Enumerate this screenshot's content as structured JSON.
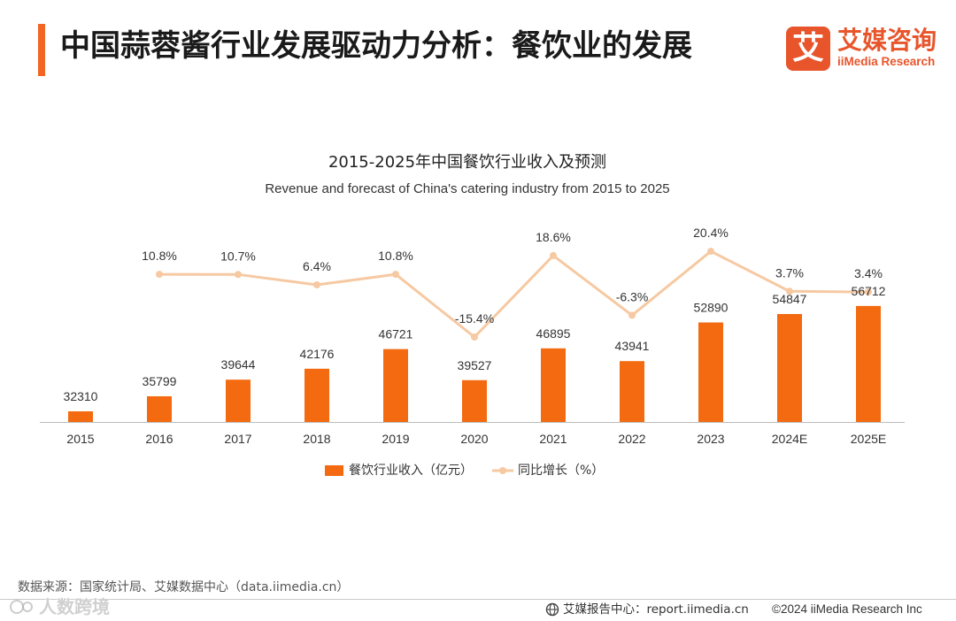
{
  "header": {
    "title": "中国蒜蓉酱行业发展驱动力分析：餐饮业的发展"
  },
  "logo": {
    "mark": "艾",
    "name_cn": "艾媒咨询",
    "name_en": "iiMedia Research"
  },
  "colors": {
    "accent": "#f26522",
    "logo": "#e8552b",
    "bar": "#f36a10",
    "line": "#f6c9a2",
    "text": "#333333"
  },
  "chart_data": {
    "type": "bar",
    "title": "2015-2025年中国餐饮行业收入及预测",
    "subtitle": "Revenue and forecast of China's catering industry from 2015 to 2025",
    "categories": [
      "2015",
      "2016",
      "2017",
      "2018",
      "2019",
      "2020",
      "2021",
      "2022",
      "2023",
      "2024E",
      "2025E"
    ],
    "series": [
      {
        "name": "餐饮行业收入（亿元）",
        "type": "bar",
        "values": [
          32310,
          35799,
          39644,
          42176,
          46721,
          39527,
          46895,
          43941,
          52890,
          54847,
          56712
        ]
      },
      {
        "name": "同比增长（%）",
        "type": "line",
        "values": [
          null,
          10.8,
          10.7,
          6.4,
          10.8,
          -15.4,
          18.6,
          -6.3,
          20.4,
          3.7,
          3.4
        ],
        "labels": [
          null,
          "10.8%",
          "10.7%",
          "6.4%",
          "10.8%",
          "-15.4%",
          "18.6%",
          "-6.3%",
          "20.4%",
          "3.7%",
          "3.4%"
        ]
      }
    ],
    "ylim": [
      29850,
      70000
    ],
    "y2lim": [
      -50,
      60
    ],
    "grid": false,
    "legend_position": "bottom"
  },
  "footer": {
    "source": "数据来源：国家统计局、艾媒数据中心（data.iimedia.cn）",
    "report_center": "艾媒报告中心：report.iimedia.cn",
    "copyright": "©2024 iiMedia Research Inc"
  },
  "watermark": {
    "text": "人数跨境"
  }
}
